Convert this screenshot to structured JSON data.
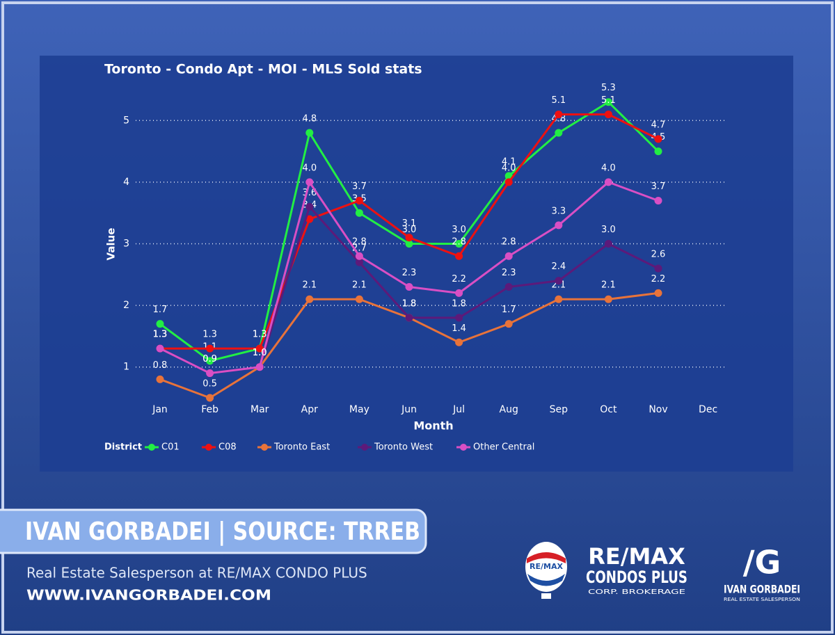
{
  "chart_data": {
    "type": "line",
    "title": "Toronto - Condo Apt - MOI - MLS Sold stats",
    "x_label": "Month",
    "y_label": "Value",
    "legend_title": "District",
    "categories": [
      "Jan",
      "Feb",
      "Mar",
      "Apr",
      "May",
      "Jun",
      "Jul",
      "Aug",
      "Sep",
      "Oct",
      "Nov",
      "Dec"
    ],
    "ylim": [
      0.5,
      5.5
    ],
    "yticks": [
      1,
      2,
      3,
      4,
      5
    ],
    "grid": true,
    "series": [
      {
        "name": "C01",
        "color": "#22ee44",
        "values": [
          1.7,
          1.1,
          1.3,
          4.8,
          3.5,
          3.0,
          3.0,
          4.1,
          4.8,
          5.3,
          4.5,
          null
        ],
        "value_labels": [
          "1.7",
          "1.1",
          "1.3",
          "4.8",
          "3.5",
          "3.0",
          "3.0",
          "4.1",
          "4.8",
          "5.3",
          "4.5",
          null
        ]
      },
      {
        "name": "C08",
        "color": "#ee1111",
        "values": [
          1.3,
          1.3,
          1.3,
          3.4,
          3.7,
          3.1,
          2.8,
          4.0,
          5.1,
          5.1,
          4.7,
          null
        ],
        "value_labels": [
          "1.3",
          "1.3",
          "1.3",
          "3.4",
          "3.7",
          "3.1",
          "2.8",
          "4.0",
          "5.1",
          "5.1",
          "4.7",
          null
        ]
      },
      {
        "name": "Toronto East",
        "color": "#e8733a",
        "values": [
          0.8,
          0.5,
          1.0,
          2.1,
          2.1,
          1.8,
          1.4,
          1.7,
          2.1,
          2.1,
          2.2,
          null
        ],
        "value_labels": [
          "0.8",
          "0.5",
          "1.0",
          "2.1",
          "2.1",
          "1.8",
          "1.4",
          "1.7",
          "2.1",
          "2.1",
          "2.2",
          null
        ]
      },
      {
        "name": "Toronto West",
        "color": "#5c1a7a",
        "values": [
          1.3,
          0.9,
          1.0,
          3.6,
          2.7,
          1.8,
          1.8,
          2.3,
          2.4,
          3.0,
          2.6,
          null
        ],
        "value_labels": [
          "1.3",
          "0.9",
          "1.0",
          "3.6",
          "2.7",
          "1.8",
          "1.8",
          "2.3",
          "2.4",
          "3.0",
          "2.6",
          null
        ]
      },
      {
        "name": "Other Central",
        "color": "#d94fc4",
        "values": [
          1.3,
          0.9,
          1.0,
          4.0,
          2.8,
          2.3,
          2.2,
          2.8,
          3.3,
          4.0,
          3.7,
          null
        ],
        "value_labels": [
          "1.3",
          "0.9",
          "1.0",
          "4.0",
          "2.8",
          "2.3",
          "2.2",
          "2.8",
          "3.3",
          "4.0",
          "3.7",
          null
        ]
      }
    ]
  },
  "branding": {
    "banner": "IVAN GORBADEI | SOURCE: TRREB",
    "tagline": "Real Estate Salesperson at RE/MAX CONDO PLUS",
    "website": "WWW.IVANGORBADEI.COM",
    "balloon": "RE/MAX",
    "brokerage": "RE/MAX",
    "brokerage_line2": "CONDOS PLUS",
    "brokerage_line3": "CORP. BROKERAGE",
    "monogram": "/G",
    "agent_name": "IVAN GORBADEI",
    "agent_title": "REAL ESTATE SALESPERSON"
  }
}
